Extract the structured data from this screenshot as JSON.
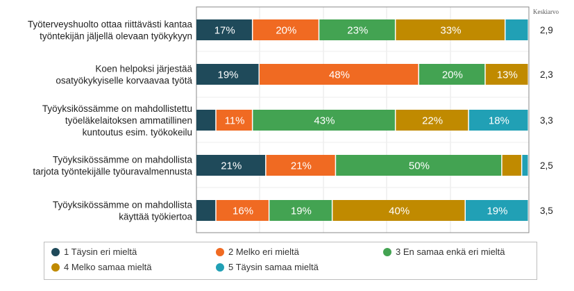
{
  "chart_data": {
    "type": "bar",
    "orientation": "horizontal",
    "stacked": true,
    "mean_header": "Keskiarvo",
    "categories": [
      [
        "Työterveyshuolto ottaa riittävästi kantaa",
        "työntekijän jäljellä olevaan työkykyyn"
      ],
      [
        "Koen helpoksi järjestää",
        "osatyökykyiselle korvaavaa työtä"
      ],
      [
        "Työyksikössämme on mahdollistettu",
        "työeläkelaitoksen ammatillinen",
        "kuntoutus esim. työkokeilu"
      ],
      [
        "Työyksikössämme on mahdollista",
        "tarjota työntekijälle työuravalmennusta"
      ],
      [
        "Työyksikössämme on mahdollista",
        "käyttää työkiertoa"
      ]
    ],
    "series": [
      {
        "name": "1 Täysin eri mieltä",
        "color": "#1f4a5a",
        "values": [
          17,
          19,
          6,
          21,
          6
        ]
      },
      {
        "name": "2 Melko eri mieltä",
        "color": "#f06a22",
        "values": [
          20,
          48,
          11,
          21,
          16
        ]
      },
      {
        "name": "3 En samaa enkä eri mieltä",
        "color": "#43a352",
        "values": [
          23,
          20,
          43,
          50,
          19
        ]
      },
      {
        "name": "4 Melko samaa mieltä",
        "color": "#c08a00",
        "values": [
          33,
          13,
          22,
          6,
          40
        ]
      },
      {
        "name": "5 Täysin samaa mieltä",
        "color": "#21a0b5",
        "values": [
          7,
          0,
          18,
          2,
          19
        ]
      }
    ],
    "means": [
      "2,9",
      "2,3",
      "3,3",
      "2,5",
      "3,5"
    ],
    "xlim": [
      0,
      100
    ],
    "grid": true,
    "legend_position": "bottom"
  }
}
